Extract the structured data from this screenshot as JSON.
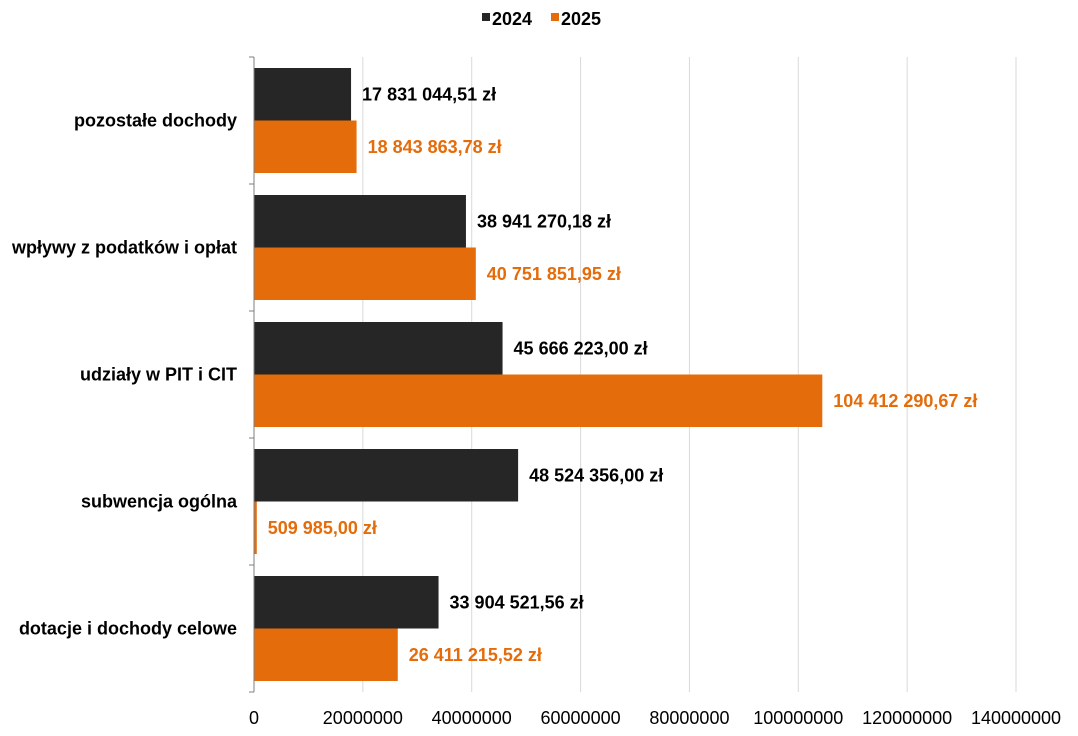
{
  "chart_data": {
    "type": "bar",
    "orientation": "horizontal",
    "categories": [
      "pozostałe dochody",
      "wpływy z podatków i opłat",
      "udziały w PIT i CIT",
      "subwencja ogólna",
      "dotacje i dochody celowe"
    ],
    "series": [
      {
        "name": "2024",
        "color": "#262626",
        "values": [
          17831044.51,
          38941270.18,
          45666223.0,
          48524356.0,
          33904521.56
        ],
        "labels": [
          "17 831 044,51 zł",
          "38 941 270,18 zł",
          "45 666 223,00 zł",
          "48 524 356,00 zł",
          "33 904 521,56 zł"
        ],
        "label_color": "#000000"
      },
      {
        "name": "2025",
        "color": "#E46C0A",
        "values": [
          18843863.78,
          40751851.95,
          104412290.67,
          509985.0,
          26411215.52
        ],
        "labels": [
          "18 843 863,78 zł",
          "40 751 851,95 zł",
          "104 412 290,67 zł",
          "509 985,00 zł",
          "26 411 215,52 zł"
        ],
        "label_color": "#E46C0A"
      }
    ],
    "xlim": [
      0,
      140000000
    ],
    "xticks": [
      0,
      20000000,
      40000000,
      60000000,
      80000000,
      100000000,
      120000000,
      140000000
    ],
    "xtick_labels": [
      "0",
      "20000000",
      "40000000",
      "60000000",
      "80000000",
      "100000000",
      "120000000",
      "140000000"
    ],
    "title": "",
    "xlabel": "",
    "ylabel": "",
    "grid": true,
    "legend_position": "top-center"
  }
}
